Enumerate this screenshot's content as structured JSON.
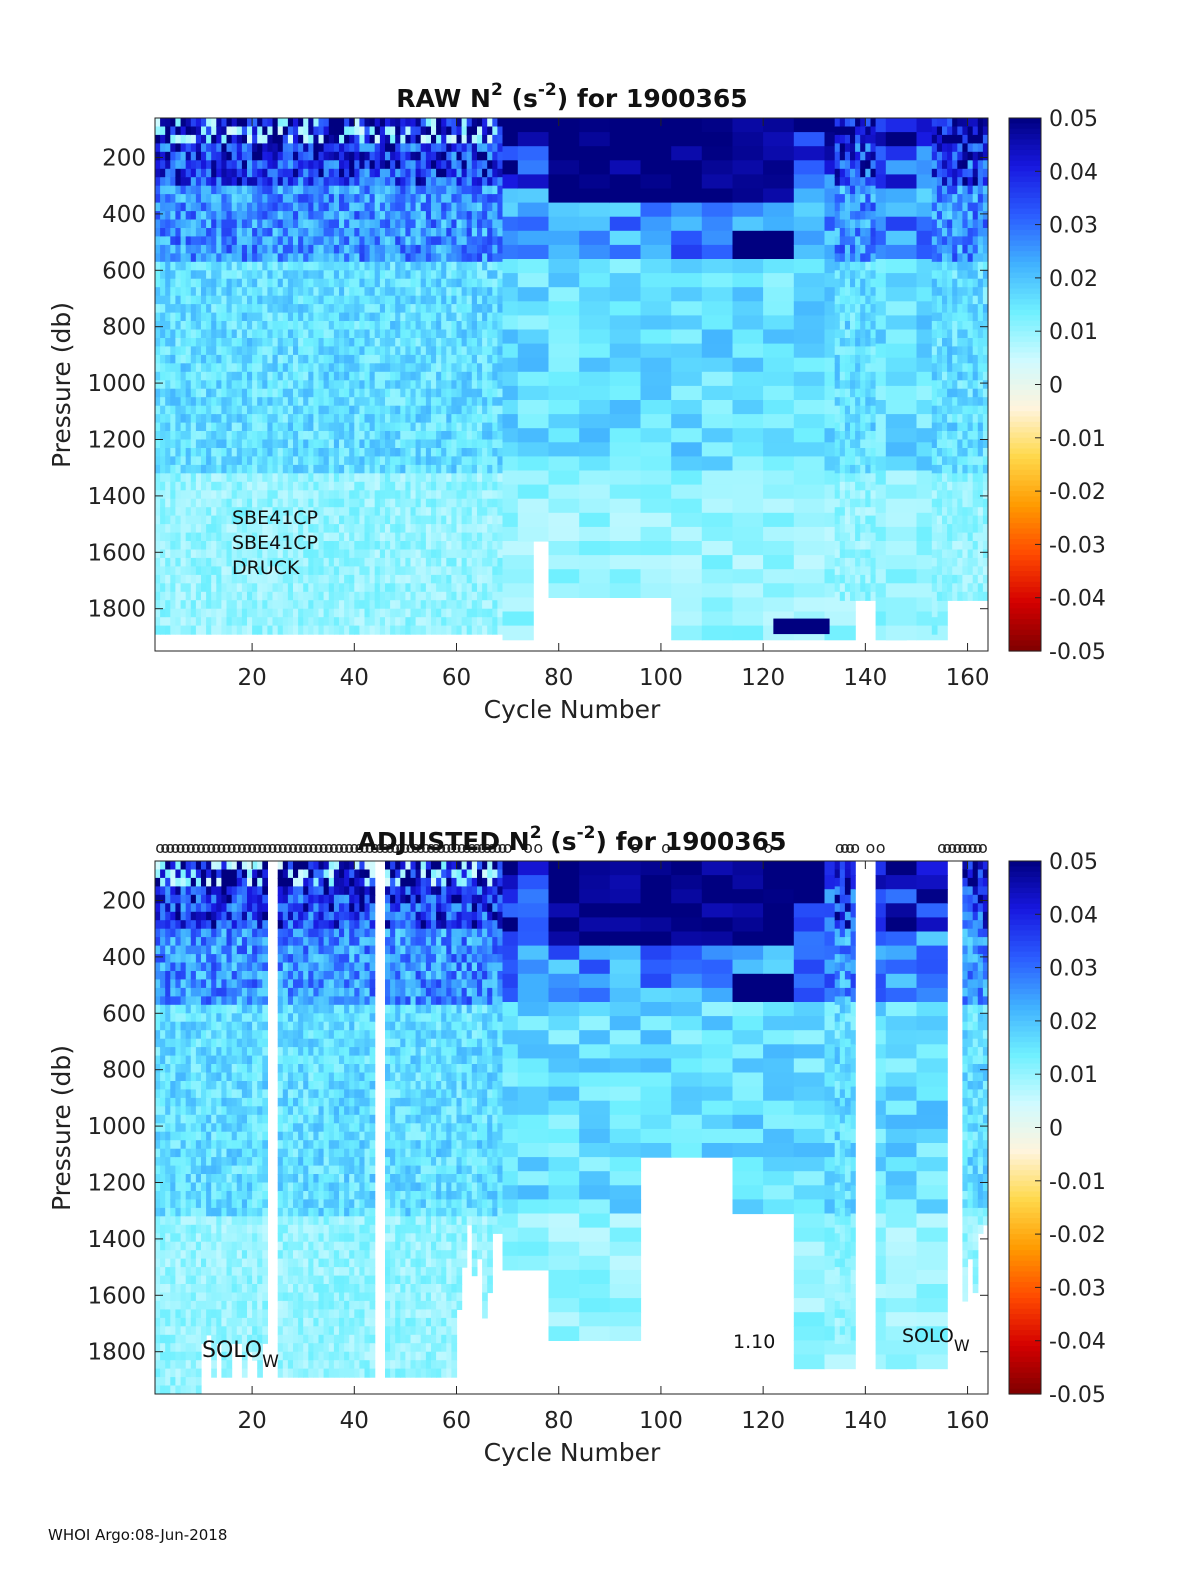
{
  "footer": "WHOI Argo:08-Jun-2018",
  "colorbar": {
    "ticks": [
      "0.05",
      "0.04",
      "0.03",
      "0.02",
      "0.01",
      "0",
      "-0.01",
      "-0.02",
      "-0.03",
      "-0.04",
      "-0.05"
    ],
    "range": [
      -0.05,
      0.05
    ],
    "colors": [
      "#7f0000",
      "#d40000",
      "#ff4a00",
      "#ff9a00",
      "#ffd84a",
      "#fff4dc",
      "#cffaff",
      "#6ff0ff",
      "#40b0ff",
      "#2b5cff",
      "#1818e0",
      "#000080"
    ]
  },
  "chart_data": [
    {
      "type": "heatmap",
      "title_main": "RAW N",
      "title_sup": "2",
      "title_mid": " (s",
      "title_sup2": "-2",
      "title_end": ") for 1900365",
      "xlabel": "Cycle Number",
      "ylabel": "Pressure (db)",
      "xlim": [
        1,
        164
      ],
      "ylim": [
        1950,
        60
      ],
      "xticks": [
        "20",
        "40",
        "60",
        "80",
        "100",
        "120",
        "140",
        "160"
      ],
      "yticks": [
        "200",
        "400",
        "600",
        "800",
        "1000",
        "1200",
        "1400",
        "1600",
        "1800"
      ],
      "annotations": [
        "SBE41CP",
        "SBE41CP",
        "DRUCK"
      ]
    },
    {
      "type": "heatmap",
      "title_main": "ADJUSTED N",
      "title_sup": "2",
      "title_mid": " (s",
      "title_sup2": "-2",
      "title_end": ") for 1900365",
      "xlabel": "Cycle Number",
      "ylabel": "Pressure (db)",
      "xlim": [
        1,
        164
      ],
      "ylim": [
        1950,
        60
      ],
      "xticks": [
        "20",
        "40",
        "60",
        "80",
        "100",
        "120",
        "140",
        "160"
      ],
      "yticks": [
        "200",
        "400",
        "600",
        "800",
        "1000",
        "1200",
        "1400",
        "1600",
        "1800"
      ],
      "annotations": [
        "SOLO",
        "W",
        "1.10",
        "SOLO",
        "W"
      ],
      "marker_symbol": "o"
    }
  ]
}
